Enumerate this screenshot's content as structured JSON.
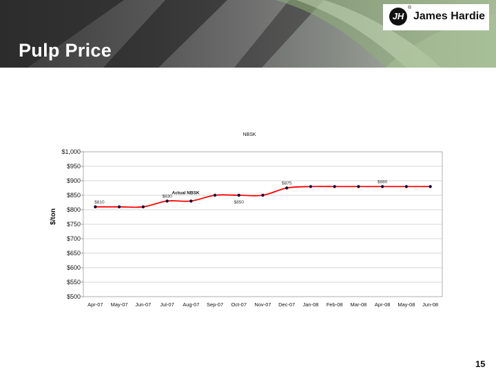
{
  "slide": {
    "title": "Pulp Price",
    "page_number": "15"
  },
  "logo": {
    "text": "James Hardie",
    "mark": "JH",
    "registered": "®"
  },
  "colors": {
    "line": "#ff0000",
    "marker": "#0a0a3a",
    "grid": "#c8c8c8",
    "title_text": "#ffffff"
  },
  "chart_data": {
    "type": "line",
    "title": "NBSK",
    "xlabel": "",
    "ylabel": "$/ton",
    "categories": [
      "Apr-07",
      "May-07",
      "Jun-07",
      "Jul-07",
      "Aug-07",
      "Sep-07",
      "Oct-07",
      "Nov-07",
      "Dec-07",
      "Jan-08",
      "Feb-08",
      "Mar-08",
      "Apr-08",
      "May-08",
      "Jun-08"
    ],
    "series": [
      {
        "values": [
          810,
          810,
          810,
          830,
          830,
          850,
          850,
          850,
          875,
          880,
          880,
          880,
          880,
          880,
          880
        ]
      }
    ],
    "ylim": [
      500,
      1000
    ],
    "yticks": [
      500,
      550,
      600,
      650,
      700,
      750,
      800,
      850,
      900,
      950,
      1000
    ],
    "ytick_labels": [
      "$500",
      "$550",
      "$600",
      "$650",
      "$700",
      "$750",
      "$800",
      "$850",
      "$900",
      "$950",
      "$1,000"
    ],
    "grid": true,
    "data_labels": [
      {
        "index": 0,
        "text": "$810"
      },
      {
        "index": 3,
        "text": "$830"
      },
      {
        "index": 6,
        "text": "$850"
      },
      {
        "index": 8,
        "text": "$875"
      },
      {
        "index": 12,
        "text": "$880"
      }
    ],
    "annotations": [
      {
        "index": 3,
        "text": "Actual NBSK"
      }
    ]
  }
}
